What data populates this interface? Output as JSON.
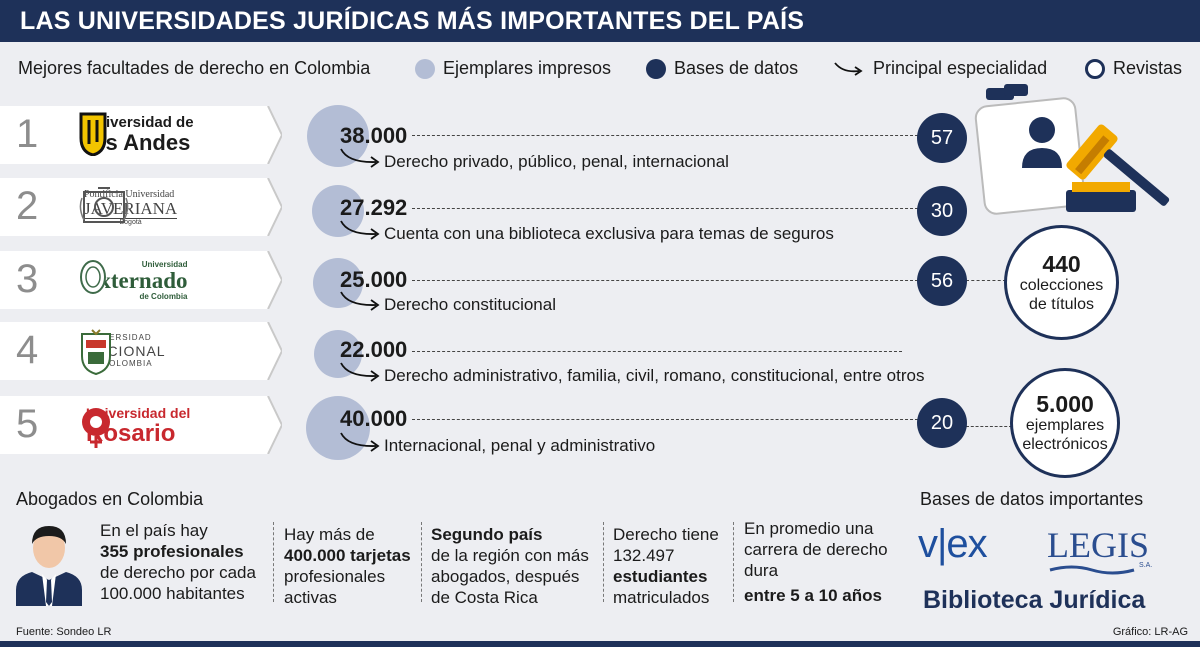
{
  "header": {
    "title": "LAS UNIVERSIDADES JURÍDICAS MÁS IMPORTANTES DEL PAÍS"
  },
  "subtitle": "Mejores facultades de derecho en Colombia",
  "legend": {
    "printed": "Ejemplares impresos",
    "databases": "Bases de datos",
    "specialty": "Principal especialidad",
    "journals": "Revistas"
  },
  "rows": [
    {
      "rank": "1",
      "logo": {
        "line1": "Universidad de",
        "line2": "los Andes"
      },
      "printed": "38.000",
      "specialty": "Derecho privado, público, penal, internacional",
      "databases": "57"
    },
    {
      "rank": "2",
      "logo": {
        "line1": "Pontificia Universidad",
        "line2": "JAVERIANA",
        "line3": "Bogotá"
      },
      "printed": "27.292",
      "specialty": "Cuenta con una biblioteca exclusiva para temas de seguros",
      "databases": "30"
    },
    {
      "rank": "3",
      "logo": {
        "line1": "Universidad",
        "line2": "Externado",
        "line3": "de Colombia"
      },
      "printed": "25.000",
      "specialty": "Derecho constitucional",
      "databases": "56"
    },
    {
      "rank": "4",
      "logo": {
        "line1": "UNIVERSIDAD",
        "line2": "NACIONAL",
        "line3": "DE COLOMBIA"
      },
      "printed": "22.000",
      "specialty": "Derecho administrativo, familia, civil, romano, constitucional, entre otros",
      "databases": ""
    },
    {
      "rank": "5",
      "logo": {
        "line1": "Universidad del",
        "line2": "Rosario"
      },
      "printed": "40.000",
      "specialty": "Internacional, penal y administrativo",
      "databases": "20"
    }
  ],
  "collections": {
    "number": "440",
    "line1": "colecciones",
    "line2": "de títulos"
  },
  "electronic": {
    "number": "5.000",
    "line1": "ejemplares",
    "line2": "electrónicos"
  },
  "lawyers": {
    "title": "Abogados en Colombia",
    "s1": {
      "a": "En el país hay",
      "b": "355 profesionales",
      "c": "de derecho por cada",
      "d": "100.000 habitantes"
    },
    "s2": {
      "a": "Hay más de",
      "b": "400.000 tarjetas",
      "c": "profesionales",
      "d": "activas"
    },
    "s3": {
      "a": "Segundo país",
      "b": "de la región con más",
      "c": "abogados, después",
      "d": "de Costa Rica"
    },
    "s4": {
      "a": "Derecho tiene",
      "b": "132.497",
      "c": "estudiantes",
      "d": "matriculados"
    },
    "s5": {
      "a": "En promedio una",
      "b": "carrera de derecho",
      "c": "dura",
      "d": "entre 5 a 10 años"
    }
  },
  "db": {
    "title": "Bases de datos importantes",
    "vlex": "v|ex",
    "legis": "LEGIS",
    "legis_sa": "S.A.",
    "biblioteca": "Biblioteca Jurídica"
  },
  "footer": {
    "source": "Fuente: Sondeo LR",
    "credit": "Gráfico: LR-AG"
  }
}
